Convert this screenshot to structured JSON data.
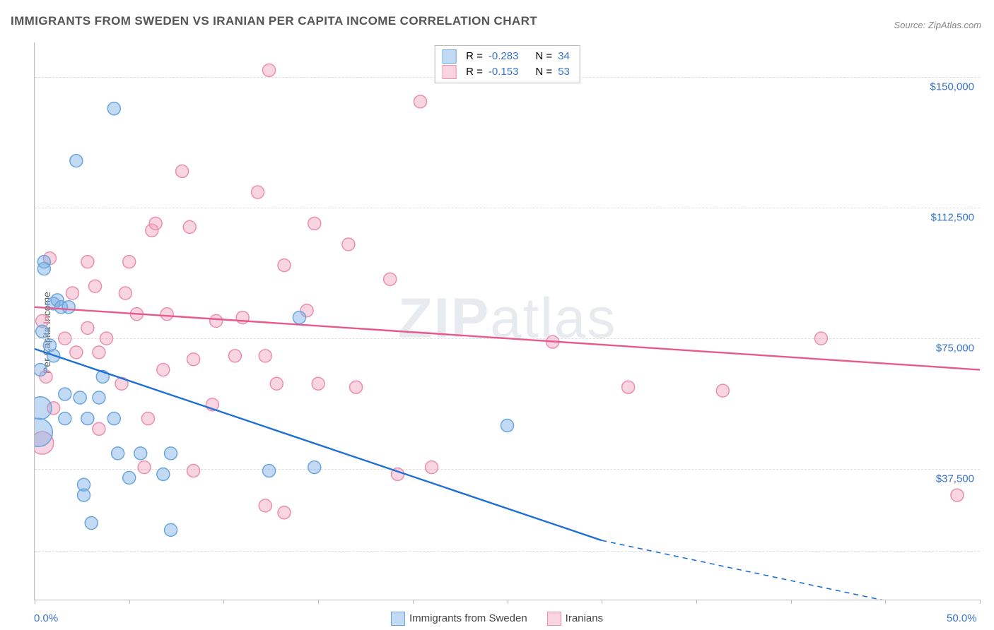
{
  "title": "IMMIGRANTS FROM SWEDEN VS IRANIAN PER CAPITA INCOME CORRELATION CHART",
  "source": "Source: ZipAtlas.com",
  "ylabel": "Per Capita Income",
  "watermark_a": "ZIP",
  "watermark_b": "atlas",
  "chart": {
    "type": "scatter",
    "background_color": "#ffffff",
    "grid_color": "#dddddd",
    "axis_color": "#bbbbbb",
    "text_color": "#555555",
    "tick_label_color": "#3874cb",
    "xlim": [
      0,
      50
    ],
    "ylim": [
      0,
      160000
    ],
    "x_ticks": [
      0,
      5,
      10,
      15,
      20,
      25,
      30,
      35,
      40,
      45,
      50
    ],
    "x_tick_labels": {
      "0": "0.0%",
      "50": "50.0%"
    },
    "y_gridlines": [
      14000,
      37500,
      75000,
      112500,
      150000
    ],
    "y_tick_labels": {
      "37500": "$37,500",
      "75000": "$75,000",
      "112500": "$112,500",
      "150000": "$150,000"
    },
    "marker_radius": 9,
    "marker_radius_large": 16,
    "marker_opacity": 0.55,
    "line_width": 2.4,
    "series": [
      {
        "name": "Immigrants from Sweden",
        "color_fill": "rgba(120,173,230,0.45)",
        "color_stroke": "#6aa6dd",
        "line_color": "#1f6fd4",
        "R": "-0.283",
        "N": "34",
        "trend": {
          "x1": 0,
          "y1": 72000,
          "x2": 30,
          "y2": 17000,
          "x2_dash": 50,
          "y2_dash": -19000
        },
        "points": [
          {
            "x": 0.5,
            "y": 97000
          },
          {
            "x": 0.5,
            "y": 95000
          },
          {
            "x": 4.2,
            "y": 141000
          },
          {
            "x": 2.2,
            "y": 126000
          },
          {
            "x": 1.2,
            "y": 86000
          },
          {
            "x": 1.0,
            "y": 85000
          },
          {
            "x": 1.4,
            "y": 84000
          },
          {
            "x": 1.8,
            "y": 84000
          },
          {
            "x": 0.4,
            "y": 77000
          },
          {
            "x": 0.8,
            "y": 73000
          },
          {
            "x": 1.0,
            "y": 70000
          },
          {
            "x": 0.3,
            "y": 66000
          },
          {
            "x": 1.6,
            "y": 59000
          },
          {
            "x": 2.4,
            "y": 58000
          },
          {
            "x": 3.4,
            "y": 58000
          },
          {
            "x": 0.3,
            "y": 55000,
            "r": 16
          },
          {
            "x": 0.2,
            "y": 48000,
            "r": 20
          },
          {
            "x": 1.6,
            "y": 52000
          },
          {
            "x": 2.8,
            "y": 52000
          },
          {
            "x": 4.2,
            "y": 52000
          },
          {
            "x": 4.4,
            "y": 42000
          },
          {
            "x": 5.6,
            "y": 42000
          },
          {
            "x": 6.8,
            "y": 36000
          },
          {
            "x": 7.2,
            "y": 42000
          },
          {
            "x": 2.6,
            "y": 33000
          },
          {
            "x": 2.6,
            "y": 30000
          },
          {
            "x": 3.0,
            "y": 22000
          },
          {
            "x": 7.2,
            "y": 20000
          },
          {
            "x": 5.0,
            "y": 35000
          },
          {
            "x": 12.4,
            "y": 37000
          },
          {
            "x": 14.8,
            "y": 38000
          },
          {
            "x": 14.0,
            "y": 81000
          },
          {
            "x": 25.0,
            "y": 50000
          },
          {
            "x": 3.6,
            "y": 64000
          }
        ]
      },
      {
        "name": "Iranians",
        "color_fill": "rgba(242,160,188,0.45)",
        "color_stroke": "#eb8fb0",
        "line_color": "#e75a8d",
        "R": "-0.153",
        "N": "53",
        "trend": {
          "x1": 0,
          "y1": 84000,
          "x2": 50,
          "y2": 66000
        },
        "points": [
          {
            "x": 12.4,
            "y": 152000
          },
          {
            "x": 20.4,
            "y": 143000
          },
          {
            "x": 7.8,
            "y": 123000
          },
          {
            "x": 11.8,
            "y": 117000
          },
          {
            "x": 6.2,
            "y": 106000
          },
          {
            "x": 14.8,
            "y": 108000
          },
          {
            "x": 16.6,
            "y": 102000
          },
          {
            "x": 8.2,
            "y": 107000
          },
          {
            "x": 5.0,
            "y": 97000
          },
          {
            "x": 0.8,
            "y": 98000
          },
          {
            "x": 2.8,
            "y": 97000
          },
          {
            "x": 13.2,
            "y": 96000
          },
          {
            "x": 18.8,
            "y": 92000
          },
          {
            "x": 2.0,
            "y": 88000
          },
          {
            "x": 3.2,
            "y": 90000
          },
          {
            "x": 5.4,
            "y": 82000
          },
          {
            "x": 7.0,
            "y": 82000
          },
          {
            "x": 3.8,
            "y": 75000
          },
          {
            "x": 6.8,
            "y": 66000
          },
          {
            "x": 8.4,
            "y": 69000
          },
          {
            "x": 9.6,
            "y": 80000
          },
          {
            "x": 10.6,
            "y": 70000
          },
          {
            "x": 12.2,
            "y": 70000
          },
          {
            "x": 2.2,
            "y": 71000
          },
          {
            "x": 3.4,
            "y": 71000
          },
          {
            "x": 0.6,
            "y": 64000
          },
          {
            "x": 6.0,
            "y": 52000
          },
          {
            "x": 3.4,
            "y": 49000
          },
          {
            "x": 4.6,
            "y": 62000
          },
          {
            "x": 12.8,
            "y": 62000
          },
          {
            "x": 15.0,
            "y": 62000
          },
          {
            "x": 17.0,
            "y": 61000
          },
          {
            "x": 14.4,
            "y": 83000
          },
          {
            "x": 9.4,
            "y": 56000
          },
          {
            "x": 0.4,
            "y": 45000,
            "r": 16
          },
          {
            "x": 5.8,
            "y": 38000
          },
          {
            "x": 8.4,
            "y": 37000
          },
          {
            "x": 12.2,
            "y": 27000
          },
          {
            "x": 13.2,
            "y": 25000
          },
          {
            "x": 19.2,
            "y": 36000
          },
          {
            "x": 21.0,
            "y": 38000
          },
          {
            "x": 27.4,
            "y": 74000
          },
          {
            "x": 31.4,
            "y": 61000
          },
          {
            "x": 36.4,
            "y": 60000
          },
          {
            "x": 41.6,
            "y": 75000
          },
          {
            "x": 48.8,
            "y": 30000
          },
          {
            "x": 1.6,
            "y": 75000
          },
          {
            "x": 2.8,
            "y": 78000
          },
          {
            "x": 4.8,
            "y": 88000
          },
          {
            "x": 1.0,
            "y": 55000
          },
          {
            "x": 6.4,
            "y": 108000
          },
          {
            "x": 11.0,
            "y": 81000
          },
          {
            "x": 0.4,
            "y": 80000
          }
        ]
      }
    ]
  },
  "top_legend_labels": {
    "R": "R =",
    "N": "N ="
  },
  "bottom_legend": [
    {
      "label": "Immigrants from Sweden",
      "fill": "rgba(120,173,230,0.45)",
      "stroke": "#6aa6dd"
    },
    {
      "label": "Iranians",
      "fill": "rgba(242,160,188,0.45)",
      "stroke": "#eb8fb0"
    }
  ]
}
